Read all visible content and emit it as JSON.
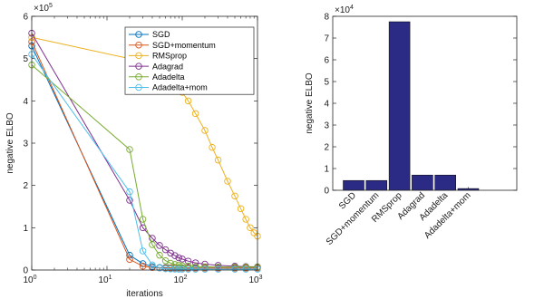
{
  "chart_data": [
    {
      "type": "line",
      "xscale": "log",
      "xlim": [
        1,
        1000
      ],
      "ylim": [
        0,
        600000
      ],
      "exponent_label": "×10",
      "exponent_sup": "5",
      "xlabel": "iterations",
      "ylabel": "negative ELBO",
      "xticks": [
        1,
        10,
        100,
        1000
      ],
      "xtick_base": "10",
      "xtick_exps": [
        "0",
        "1",
        "2",
        "3"
      ],
      "yticks": [
        0,
        100000,
        200000,
        300000,
        400000,
        500000,
        600000
      ],
      "ytick_labels": [
        "0",
        "1",
        "2",
        "3",
        "4",
        "5",
        "6"
      ],
      "legend_position": "top-right",
      "series": [
        {
          "name": "SGD",
          "color": "#0072bd",
          "x": [
            1,
            20,
            30,
            40,
            50,
            60,
            70,
            80,
            90,
            100,
            120,
            150,
            200,
            300,
            500,
            700,
            1000
          ],
          "y": [
            530000,
            35000,
            15000,
            8000,
            6000,
            5500,
            5000,
            5000,
            5000,
            5000,
            5000,
            5000,
            5000,
            5000,
            5000,
            5000,
            5000
          ]
        },
        {
          "name": "SGD+momentum",
          "color": "#d95319",
          "x": [
            1,
            20,
            30,
            40,
            50,
            60,
            70,
            80,
            90,
            100,
            120,
            150,
            200,
            300,
            500,
            700,
            1000
          ],
          "y": [
            540000,
            25000,
            9000,
            6000,
            5000,
            4800,
            4700,
            4600,
            4500,
            4500,
            4500,
            4500,
            4500,
            4500,
            4500,
            4500,
            4500
          ]
        },
        {
          "name": "RMSprop",
          "color": "#edb120",
          "x": [
            1,
            20,
            40,
            60,
            80,
            100,
            120,
            150,
            200,
            250,
            300,
            400,
            500,
            600,
            700,
            800,
            900,
            1000
          ],
          "y": [
            550000,
            500000,
            480000,
            460000,
            440000,
            420000,
            400000,
            370000,
            330000,
            290000,
            260000,
            210000,
            175000,
            145000,
            120000,
            100000,
            88000,
            80000
          ]
        },
        {
          "name": "Adagrad",
          "color": "#7e2f8e",
          "x": [
            1,
            20,
            30,
            40,
            50,
            60,
            70,
            80,
            90,
            100,
            120,
            150,
            200,
            300,
            500,
            700,
            1000
          ],
          "y": [
            560000,
            165000,
            100000,
            75000,
            58000,
            48000,
            40000,
            34000,
            29000,
            26000,
            21000,
            17000,
            14000,
            11000,
            9000,
            8000,
            7500
          ]
        },
        {
          "name": "Adadelta",
          "color": "#77ac30",
          "x": [
            1,
            20,
            30,
            40,
            50,
            60,
            70,
            80,
            90,
            100,
            120,
            150,
            200,
            300,
            500,
            700,
            1000
          ],
          "y": [
            485000,
            285000,
            120000,
            60000,
            35000,
            22000,
            16000,
            13000,
            11000,
            10000,
            9000,
            8000,
            7500,
            7000,
            7000,
            7000,
            7000
          ]
        },
        {
          "name": "Adadelta+mom",
          "color": "#4dbeee",
          "x": [
            1,
            20,
            30,
            40,
            50,
            60,
            70,
            80,
            90,
            100,
            120,
            150,
            200,
            300,
            500,
            700,
            1000
          ],
          "y": [
            510000,
            185000,
            45000,
            12000,
            5000,
            3000,
            2500,
            2200,
            2000,
            2000,
            2000,
            2000,
            2000,
            2000,
            2000,
            2000,
            2000
          ]
        }
      ]
    },
    {
      "type": "bar",
      "ylim": [
        0,
        80000
      ],
      "exponent_label": "×10",
      "exponent_sup": "4",
      "ylabel": "negative ELBO",
      "yticks": [
        0,
        10000,
        20000,
        30000,
        40000,
        50000,
        60000,
        70000,
        80000
      ],
      "ytick_labels": [
        "0",
        "1",
        "2",
        "3",
        "4",
        "5",
        "6",
        "7",
        "8"
      ],
      "bar_color": "#2b2a85",
      "categories": [
        "SGD",
        "SGD+momentum",
        "RMSprop",
        "Adagrad",
        "Adadelta",
        "Adadelta+mom"
      ],
      "values": [
        4500,
        4500,
        77500,
        7000,
        7000,
        800
      ]
    }
  ]
}
